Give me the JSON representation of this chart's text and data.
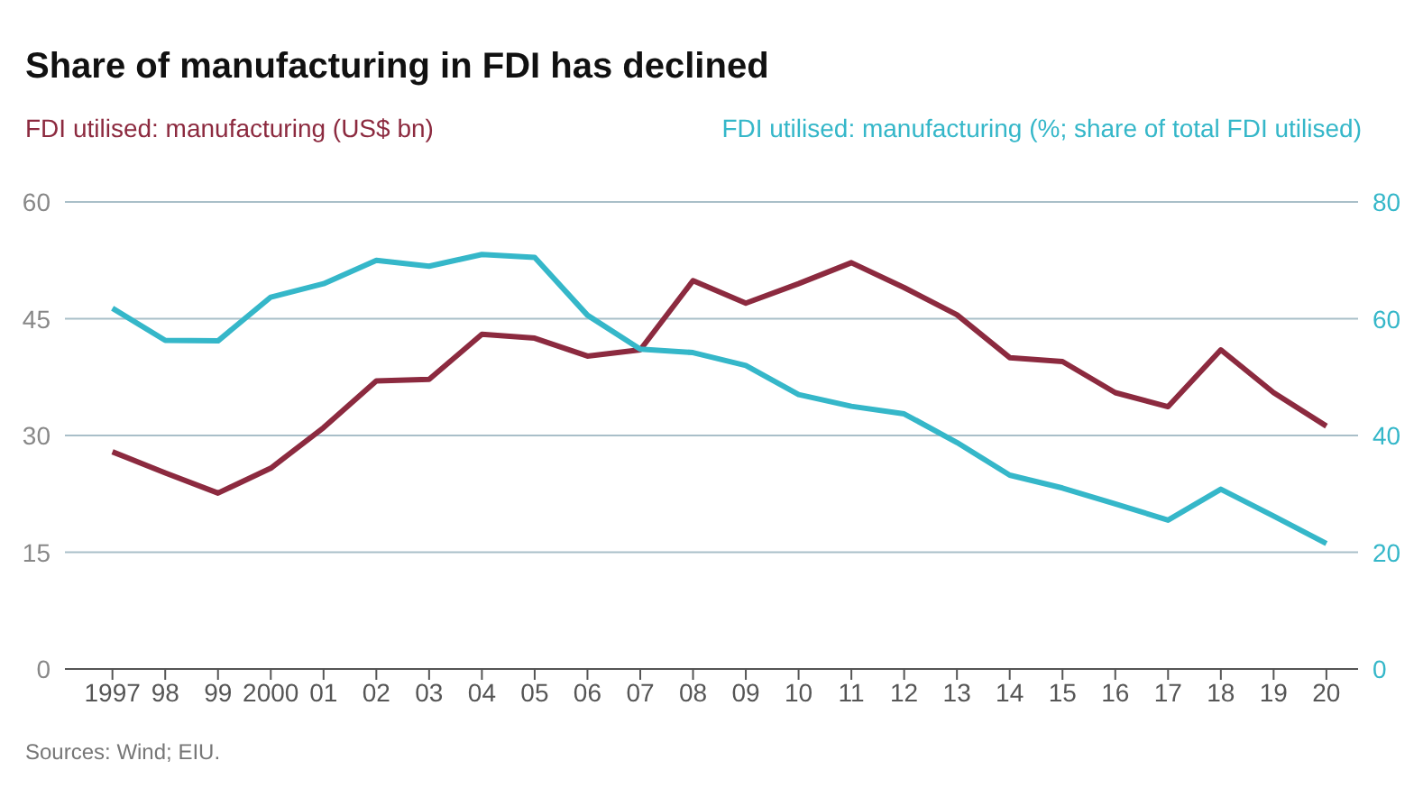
{
  "chart_data": {
    "type": "line",
    "title": "Share of manufacturing in FDI has declined",
    "ylabel": "FDI utilised: manufacturing (US$ bn)",
    "y2label": "FDI utilised: manufacturing (%; share of total FDI utilised)",
    "categories": [
      "1997",
      "98",
      "99",
      "2000",
      "01",
      "02",
      "03",
      "04",
      "05",
      "06",
      "07",
      "08",
      "09",
      "10",
      "11",
      "12",
      "13",
      "14",
      "15",
      "16",
      "17",
      "18",
      "19",
      "20"
    ],
    "series": [
      {
        "color": "#8c2a3f",
        "values": [
          27.9,
          25.2,
          22.6,
          25.8,
          31,
          37,
          37.2,
          43,
          42.5,
          40.2,
          41,
          49.9,
          47,
          49.5,
          52.2,
          49,
          45.5,
          40,
          39.5,
          35.5,
          33.7,
          41,
          35.5,
          31.2
        ]
      },
      {
        "color": "#35b7c9",
        "axis": "y2",
        "values": [
          61.8,
          56.3,
          56.2,
          63.7,
          66,
          70,
          69,
          71,
          70.5,
          60.6,
          54.8,
          54.2,
          52,
          47,
          45,
          43.7,
          38.8,
          33.2,
          31,
          28.3,
          25.5,
          30.8,
          26.2,
          21.5
        ]
      }
    ],
    "ylim": [
      0,
      60
    ],
    "yticks": [
      0,
      15,
      30,
      45,
      60
    ],
    "y2lim": [
      0,
      80
    ],
    "y2ticks": [
      0,
      20,
      40,
      60,
      80
    ],
    "grid": "y",
    "legend": false,
    "marker": "none",
    "line_style": "solid",
    "annotations": [
      "Sources: Wind; EIU."
    ]
  }
}
